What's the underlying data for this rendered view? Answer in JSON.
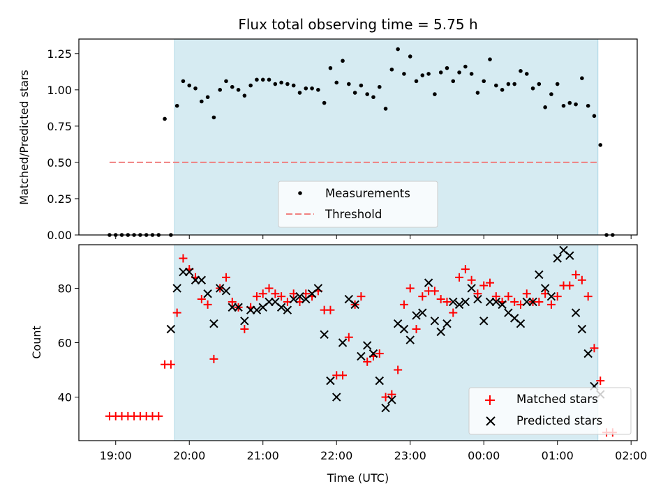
{
  "chart_data": [
    {
      "type": "scatter",
      "title": "Flux total observing time = 5.75 h",
      "ylabel": "Matched/Predicted stars",
      "ylim": [
        0,
        1.35
      ],
      "yticks": [
        0.0,
        0.25,
        0.5,
        0.75,
        1.0,
        1.25
      ],
      "ytick_labels": [
        "0.00",
        "0.25",
        "0.50",
        "0.75",
        "1.00",
        "1.25"
      ],
      "observing_window": [
        "19:48",
        "01:33"
      ],
      "threshold": {
        "name": "Threshold",
        "value": 0.5,
        "x_range": [
          "18:55",
          "01:32"
        ]
      },
      "legend": [
        "Measurements",
        "Threshold"
      ],
      "legend_location": "lower center",
      "series": [
        {
          "name": "Measurements",
          "color": "#000000",
          "x": [
            "18:55",
            "19:00",
            "19:05",
            "19:10",
            "19:15",
            "19:20",
            "19:25",
            "19:30",
            "19:35",
            "19:40",
            "19:45",
            "19:50",
            "19:55",
            "20:00",
            "20:05",
            "20:10",
            "20:15",
            "20:20",
            "20:25",
            "20:30",
            "20:35",
            "20:40",
            "20:45",
            "20:50",
            "20:55",
            "21:00",
            "21:05",
            "21:10",
            "21:15",
            "21:20",
            "21:25",
            "21:30",
            "21:35",
            "21:40",
            "21:45",
            "21:50",
            "21:55",
            "22:00",
            "22:05",
            "22:10",
            "22:15",
            "22:20",
            "22:25",
            "22:30",
            "22:35",
            "22:40",
            "22:45",
            "22:50",
            "22:55",
            "23:00",
            "23:05",
            "23:10",
            "23:15",
            "23:20",
            "23:25",
            "23:30",
            "23:35",
            "23:40",
            "23:45",
            "23:50",
            "23:55",
            "00:00",
            "00:05",
            "00:10",
            "00:15",
            "00:20",
            "00:25",
            "00:30",
            "00:35",
            "00:40",
            "00:45",
            "00:50",
            "00:55",
            "01:00",
            "01:05",
            "01:10",
            "01:15",
            "01:20",
            "01:25",
            "01:30",
            "01:35",
            "01:40",
            "01:45"
          ],
          "y": [
            0,
            0,
            0,
            0,
            0,
            0,
            0,
            0,
            0,
            0.8,
            0,
            0.89,
            1.06,
            1.03,
            1.01,
            0.92,
            0.95,
            0.81,
            1.0,
            1.06,
            1.02,
            1.0,
            0.96,
            1.03,
            1.07,
            1.07,
            1.07,
            1.04,
            1.05,
            1.04,
            1.03,
            0.98,
            1.01,
            1.01,
            1.0,
            0.91,
            1.15,
            1.05,
            1.2,
            1.04,
            0.98,
            1.03,
            0.97,
            0.95,
            1.02,
            0.87,
            1.14,
            1.28,
            1.11,
            1.23,
            1.06,
            1.1,
            1.11,
            0.97,
            1.12,
            1.15,
            1.06,
            1.12,
            1.16,
            1.11,
            0.98,
            1.06,
            1.21,
            1.03,
            1.0,
            1.04,
            1.04,
            1.13,
            1.11,
            1.01,
            1.04,
            0.88,
            0.97,
            1.04,
            0.89,
            0.91,
            0.9,
            1.08,
            0.89,
            0.82,
            0.62,
            0,
            0
          ]
        }
      ]
    },
    {
      "type": "scatter",
      "xlabel": "Time (UTC)",
      "ylabel": "Count",
      "ylim": [
        24,
        96
      ],
      "yticks": [
        40,
        60,
        80
      ],
      "ytick_labels": [
        "40",
        "60",
        "80"
      ],
      "xticks": [
        "19:00",
        "20:00",
        "21:00",
        "22:00",
        "23:00",
        "00:00",
        "01:00",
        "02:00"
      ],
      "observing_window": [
        "19:48",
        "01:33"
      ],
      "legend": [
        "Matched stars",
        "Predicted stars"
      ],
      "legend_location": "lower right",
      "series": [
        {
          "name": "Matched stars",
          "marker": "+",
          "color": "#ff0000",
          "x": [
            "18:55",
            "19:00",
            "19:05",
            "19:10",
            "19:15",
            "19:20",
            "19:25",
            "19:30",
            "19:35",
            "19:40",
            "19:45",
            "19:50",
            "19:55",
            "20:00",
            "20:05",
            "20:10",
            "20:15",
            "20:20",
            "20:25",
            "20:30",
            "20:35",
            "20:40",
            "20:45",
            "20:50",
            "20:55",
            "21:00",
            "21:05",
            "21:10",
            "21:15",
            "21:20",
            "21:25",
            "21:30",
            "21:35",
            "21:40",
            "21:45",
            "21:50",
            "21:55",
            "22:00",
            "22:05",
            "22:10",
            "22:15",
            "22:20",
            "22:25",
            "22:30",
            "22:35",
            "22:40",
            "22:45",
            "22:50",
            "22:55",
            "23:00",
            "23:05",
            "23:10",
            "23:15",
            "23:20",
            "23:25",
            "23:30",
            "23:35",
            "23:40",
            "23:45",
            "23:50",
            "23:55",
            "00:00",
            "00:05",
            "00:10",
            "00:15",
            "00:20",
            "00:25",
            "00:30",
            "00:35",
            "00:40",
            "00:45",
            "00:50",
            "00:55",
            "01:00",
            "01:05",
            "01:10",
            "01:15",
            "01:20",
            "01:25",
            "01:30",
            "01:35",
            "01:40",
            "01:45"
          ],
          "y": [
            33,
            33,
            33,
            33,
            33,
            33,
            33,
            33,
            33,
            52,
            52,
            71,
            91,
            87,
            84,
            76,
            74,
            54,
            80,
            84,
            75,
            73,
            65,
            73,
            77,
            78,
            80,
            78,
            77,
            75,
            78,
            75,
            78,
            77,
            79,
            72,
            72,
            48,
            48,
            62,
            74,
            77,
            53,
            55,
            56,
            40,
            41,
            50,
            74,
            80,
            65,
            77,
            79,
            79,
            76,
            75,
            71,
            84,
            87,
            83,
            78,
            81,
            82,
            77,
            75,
            77,
            75,
            74,
            78,
            75,
            75,
            78,
            74,
            77,
            81,
            81,
            85,
            83,
            77,
            58,
            46,
            27,
            27
          ]
        },
        {
          "name": "Predicted stars",
          "marker": "x",
          "color": "#000000",
          "x": [
            "19:45",
            "19:50",
            "19:55",
            "20:00",
            "20:05",
            "20:10",
            "20:15",
            "20:20",
            "20:25",
            "20:30",
            "20:35",
            "20:40",
            "20:45",
            "20:50",
            "20:55",
            "21:00",
            "21:05",
            "21:10",
            "21:15",
            "21:20",
            "21:25",
            "21:30",
            "21:35",
            "21:40",
            "21:45",
            "21:50",
            "21:55",
            "22:00",
            "22:05",
            "22:10",
            "22:15",
            "22:20",
            "22:25",
            "22:30",
            "22:35",
            "22:40",
            "22:45",
            "22:50",
            "22:55",
            "23:00",
            "23:05",
            "23:10",
            "23:15",
            "23:20",
            "23:25",
            "23:30",
            "23:35",
            "23:40",
            "23:45",
            "23:50",
            "23:55",
            "00:00",
            "00:05",
            "00:10",
            "00:15",
            "00:20",
            "00:25",
            "00:30",
            "00:35",
            "00:40",
            "00:45",
            "00:50",
            "00:55",
            "01:00",
            "01:05",
            "01:10",
            "01:15",
            "01:20",
            "01:25",
            "01:30",
            "01:35"
          ],
          "y": [
            65,
            80,
            86,
            86,
            83,
            83,
            78,
            67,
            80,
            79,
            73,
            73,
            68,
            72,
            72,
            73,
            75,
            75,
            73,
            72,
            76,
            77,
            76,
            78,
            80,
            63,
            46,
            40,
            60,
            76,
            74,
            55,
            59,
            56,
            46,
            36,
            39,
            67,
            65,
            61,
            70,
            71,
            82,
            68,
            64,
            67,
            75,
            74,
            75,
            80,
            76,
            68,
            75,
            75,
            74,
            71,
            69,
            67,
            75,
            75,
            85,
            80,
            77,
            91,
            94,
            92,
            71,
            65,
            56,
            44,
            41
          ]
        }
      ]
    }
  ]
}
